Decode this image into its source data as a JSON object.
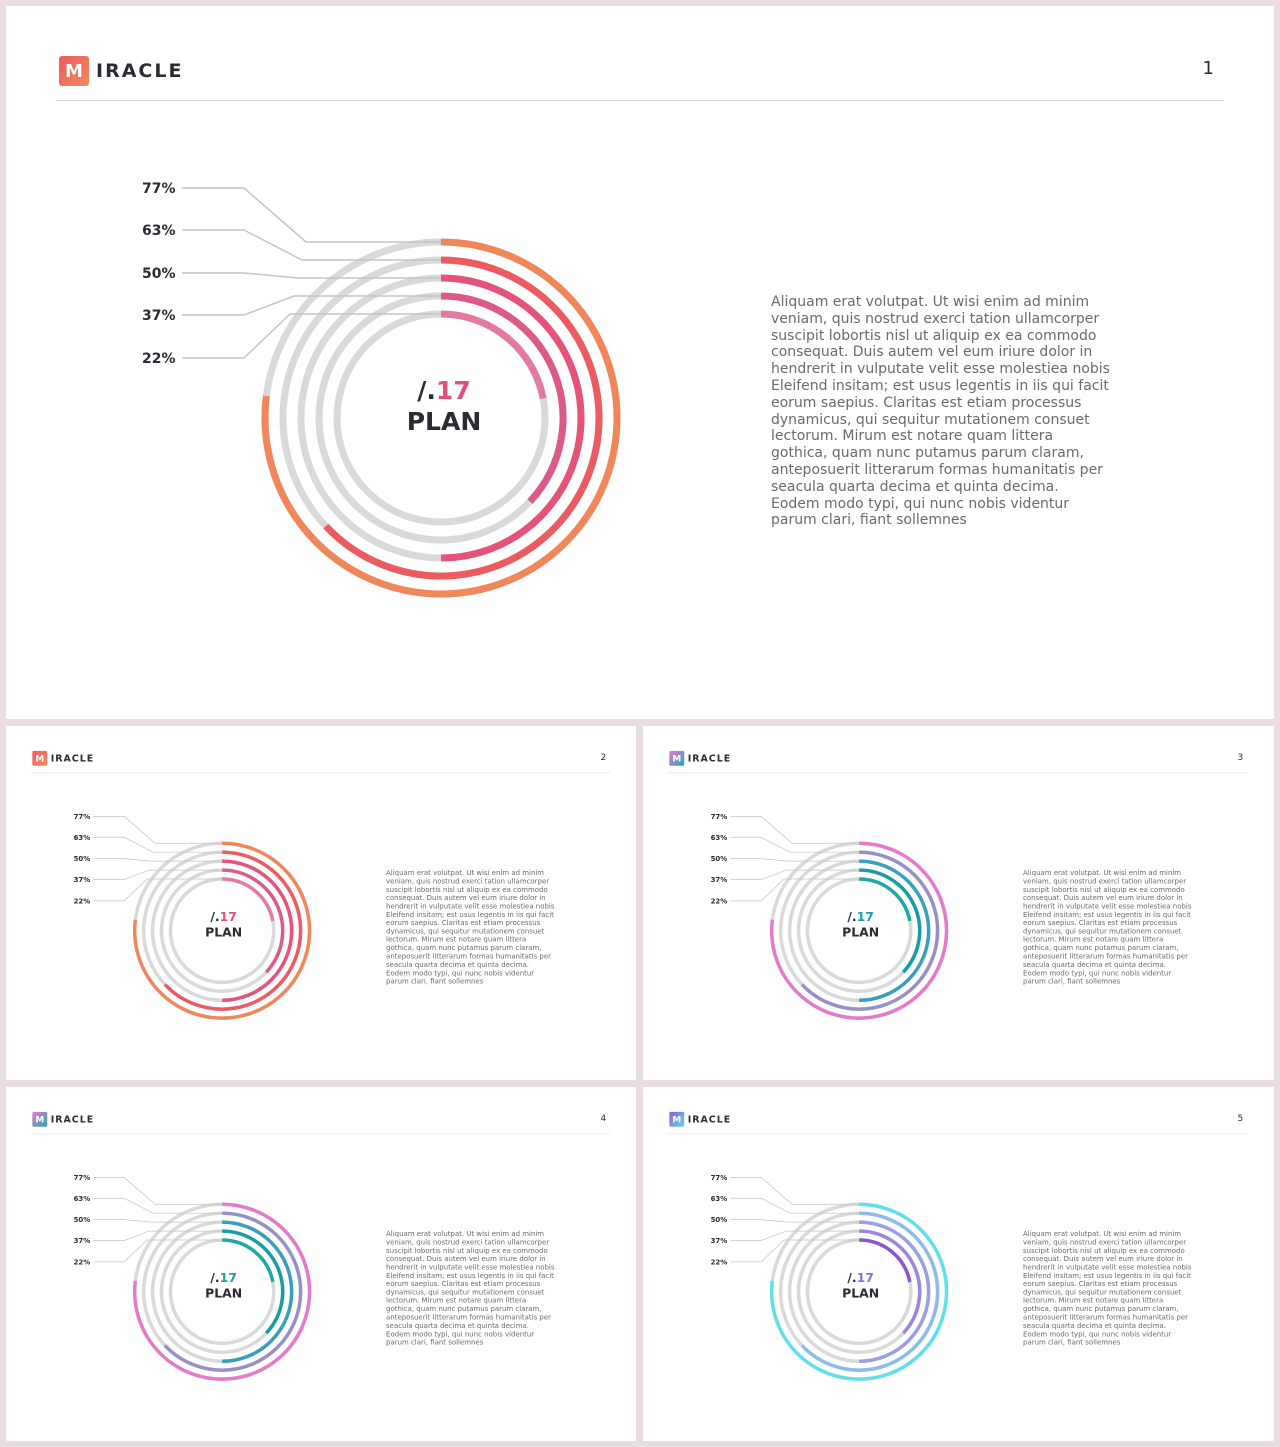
{
  "brand": {
    "logo_letter": "M",
    "logo_text": "IRACLE"
  },
  "center": {
    "prefix": "/.",
    "year": "17",
    "label": "PLAN"
  },
  "body_text": "Aliquam erat volutpat. Ut wisi enim ad minim veniam, quis nostrud exerci tation ullamcorper suscipit lobortis nisl ut aliquip ex ea commodo consequat. Duis autem vel eum iriure dolor in hendrerit in vulputate velit esse molestiea nobis Eleifend insitam; est usus legentis in iis qui facit eorum saepius. Claritas est etiam processus dynamicus, qui sequitur mutationem consuet lectorum. Mirum est notare quam littera gothica, quam nunc putamus parum claram, anteposuerit litterarum formas humanitatis per seacula quarta decima et quinta decima. Eodem modo typi, qui nunc nobis videntur parum clari, fiant sollemnes",
  "chart_data": {
    "type": "radial-bar",
    "labels": [
      "77%",
      "63%",
      "50%",
      "37%",
      "22%"
    ],
    "values": [
      77,
      63,
      50,
      37,
      22
    ],
    "track_color": "#d9d9d9"
  },
  "slides": [
    {
      "page": "1",
      "logo_gradient": [
        "#ef5a62",
        "#f08a5c"
      ],
      "year_color": "#e0507a",
      "ring_colors": [
        "#f0875a",
        "#ec5b61",
        "#e5527a",
        "#dc5a8a",
        "#e27aa4"
      ]
    },
    {
      "page": "2",
      "logo_gradient": [
        "#ef5a62",
        "#f08a5c"
      ],
      "year_color": "#e0507a",
      "ring_colors": [
        "#f0875a",
        "#ec5b61",
        "#e5527a",
        "#dc5a8a",
        "#e27aa4"
      ]
    },
    {
      "page": "3",
      "logo_gradient": [
        "#e97bcf",
        "#23a7b2"
      ],
      "year_color": "#1f9cb0",
      "ring_colors": [
        "#e47ac9",
        "#9790c7",
        "#3a9fbf",
        "#189ca3",
        "#1aaaa7"
      ]
    },
    {
      "page": "4",
      "logo_gradient": [
        "#e97bcf",
        "#23a7b2"
      ],
      "year_color": "#1f9cb0",
      "ring_colors": [
        "#e47ac9",
        "#9790c7",
        "#3a9fbf",
        "#189ca3",
        "#1aaaa7"
      ]
    },
    {
      "page": "5",
      "logo_gradient": [
        "#8e5ed2",
        "#5fd9e8"
      ],
      "year_color": "#8a6fd6",
      "ring_colors": [
        "#61e0ec",
        "#8dbbea",
        "#9a9ee3",
        "#9b86df",
        "#8a55cd"
      ]
    }
  ]
}
